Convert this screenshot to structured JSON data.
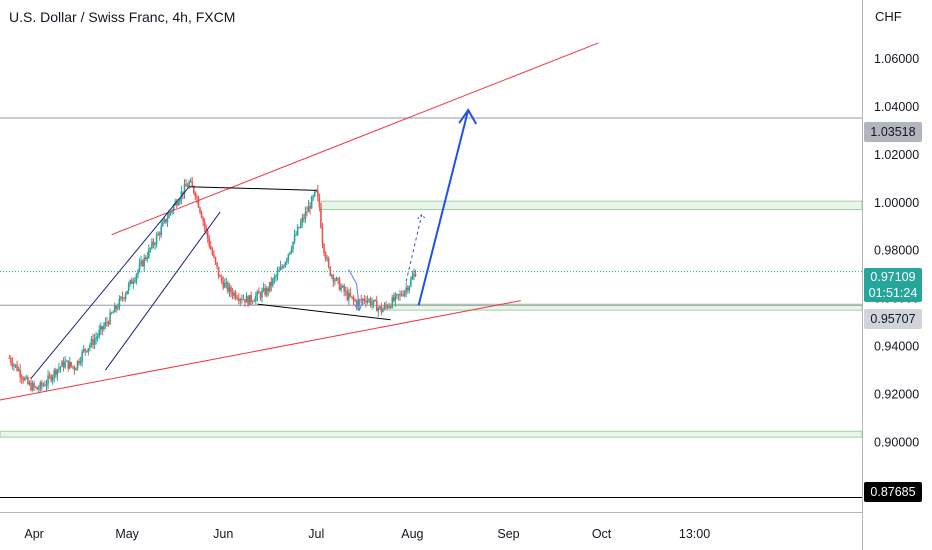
{
  "header": {
    "title": "U.S. Dollar / Swiss Franc, 4h, FXCM",
    "currency": "CHF"
  },
  "price_labels": {
    "resistance": "1.03518",
    "current_price": "0.97109",
    "countdown": "01:51:24",
    "support": "0.95707",
    "low": "0.87685"
  },
  "colors": {
    "bull": "#26a69a",
    "bear": "#ef5350",
    "trendline": "#f23645",
    "arrow": "#1e53e5",
    "zone": "#4caf50",
    "current": "#26a69a"
  },
  "chart_data": {
    "type": "line",
    "symbol": "USDCHF",
    "timeframe": "4h",
    "source": "FXCM",
    "y_ticks": [
      0.9,
      0.92,
      0.94,
      0.96,
      0.98,
      1.0,
      1.02,
      1.04,
      1.06
    ],
    "y_tick_labels": [
      "0.90000",
      "0.92000",
      "0.94000",
      "0.96000",
      "0.98000",
      "1.00000",
      "1.02000",
      "1.04000",
      "1.06000"
    ],
    "ylim": [
      0.8708,
      1.0844
    ],
    "x_ticks": [
      {
        "label": "Apr",
        "date": "2021-04-01"
      },
      {
        "label": "May",
        "date": "2021-05-01"
      },
      {
        "label": "Jun",
        "date": "2021-06-01"
      },
      {
        "label": "Jul",
        "date": "2021-07-01"
      },
      {
        "label": "Aug",
        "date": "2021-08-01"
      },
      {
        "label": "Sep",
        "date": "2021-09-01"
      },
      {
        "label": "Oct",
        "date": "2021-10-01"
      },
      {
        "label": "13:00",
        "date": "2021-10-31"
      }
    ],
    "xlim": [
      "2021-03-21",
      "2021-12-24"
    ],
    "price_path": [
      [
        "2021-03-24",
        0.935
      ],
      [
        "2021-03-27",
        0.93
      ],
      [
        "2021-03-30",
        0.924
      ],
      [
        "2021-04-02",
        0.922
      ],
      [
        "2021-04-05",
        0.925
      ],
      [
        "2021-04-08",
        0.93
      ],
      [
        "2021-04-11",
        0.933
      ],
      [
        "2021-04-14",
        0.931
      ],
      [
        "2021-04-17",
        0.938
      ],
      [
        "2021-04-20",
        0.942
      ],
      [
        "2021-04-24",
        0.949
      ],
      [
        "2021-04-28",
        0.957
      ],
      [
        "2021-05-02",
        0.966
      ],
      [
        "2021-05-06",
        0.975
      ],
      [
        "2021-05-10",
        0.984
      ],
      [
        "2021-05-14",
        0.994
      ],
      [
        "2021-05-18",
        1.003
      ],
      [
        "2021-05-21",
        1.008
      ],
      [
        "2021-05-23",
        1.004
      ],
      [
        "2021-05-25",
        0.995
      ],
      [
        "2021-05-27",
        0.985
      ],
      [
        "2021-05-29",
        0.976
      ],
      [
        "2021-05-31",
        0.968
      ],
      [
        "2021-06-03",
        0.963
      ],
      [
        "2021-06-06",
        0.961
      ],
      [
        "2021-06-09",
        0.959
      ],
      [
        "2021-06-12",
        0.961
      ],
      [
        "2021-06-15",
        0.963
      ],
      [
        "2021-06-17",
        0.967
      ],
      [
        "2021-06-20",
        0.973
      ],
      [
        "2021-06-23",
        0.982
      ],
      [
        "2021-06-26",
        0.991
      ],
      [
        "2021-06-29",
        0.999
      ],
      [
        "2021-07-01",
        1.004
      ],
      [
        "2021-07-02",
        0.998
      ],
      [
        "2021-07-03",
        0.984
      ],
      [
        "2021-07-05",
        0.972
      ],
      [
        "2021-07-08",
        0.966
      ],
      [
        "2021-07-11",
        0.961
      ],
      [
        "2021-07-14",
        0.958
      ],
      [
        "2021-07-17",
        0.96
      ],
      [
        "2021-07-20",
        0.957
      ],
      [
        "2021-07-22",
        0.955
      ],
      [
        "2021-07-25",
        0.958
      ],
      [
        "2021-07-28",
        0.961
      ],
      [
        "2021-07-31",
        0.966
      ],
      [
        "2021-08-02",
        0.971
      ]
    ],
    "horizontal_levels": [
      {
        "price": 1.03518,
        "style": "line",
        "label": "1.03518"
      },
      {
        "price": 0.95707,
        "style": "line",
        "label": "0.95707"
      },
      {
        "price": 0.87685,
        "style": "line",
        "label": "0.87685"
      },
      {
        "price": 0.97109,
        "style": "dotted",
        "label": "0.97109"
      }
    ],
    "zones": [
      {
        "from": 0.997,
        "to": 1.0005
      },
      {
        "from": 0.955,
        "to": 0.9575
      },
      {
        "from": 0.902,
        "to": 0.9045
      }
    ],
    "trendlines": [
      {
        "name": "channel-upper",
        "from": [
          "2021-04-26",
          0.9865
        ],
        "to": [
          "2021-09-30",
          1.0665
        ]
      },
      {
        "name": "channel-lower",
        "from": [
          "2021-03-21",
          0.9175
        ],
        "to": [
          "2021-09-05",
          0.959
        ]
      }
    ],
    "patterns": {
      "top_line": {
        "from": [
          "2021-05-21",
          1.0065
        ],
        "to": [
          "2021-07-01",
          1.005
        ]
      },
      "bottom_line": {
        "from": [
          "2021-06-12",
          0.9575
        ],
        "to": [
          "2021-07-25",
          0.951
        ]
      },
      "rising_channel_a": {
        "from": [
          "2021-03-31",
          0.9265
        ],
        "to": [
          "2021-05-21",
          1.0065
        ]
      },
      "rising_channel_b": {
        "from": [
          "2021-04-24",
          0.93
        ],
        "to": [
          "2021-05-31",
          0.996
        ]
      }
    },
    "projection_arrow": {
      "from": [
        "2021-08-03",
        0.957
      ],
      "to": [
        "2021-08-19",
        1.0385
      ]
    },
    "dashed_projection": {
      "from": [
        "2021-07-30",
        0.967
      ],
      "to": [
        "2021-08-04",
        0.9948
      ]
    },
    "current_price": 0.97109
  }
}
